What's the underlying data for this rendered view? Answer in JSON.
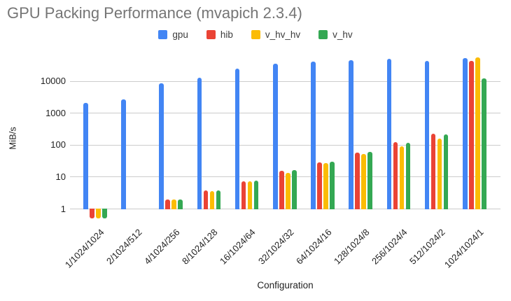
{
  "chart_data": {
    "type": "bar",
    "title": "GPU Packing Performance (mvapich 2.3.4)",
    "xlabel": "Configuration",
    "ylabel": "MiB/s",
    "y_scale": "log",
    "y_ticks": [
      1,
      10,
      100,
      1000,
      10000
    ],
    "ylim": [
      0.5,
      60000
    ],
    "grid": true,
    "legend_position": "top",
    "title_color": "#757575",
    "gridline_color": "#cccccc",
    "categories": [
      "1/1024/1024",
      "2/1024/512",
      "4/1024/256",
      "8/1024/128",
      "16/1024/64",
      "32/1024/32",
      "64/1024/16",
      "128/1024/8",
      "256/1024/4",
      "512/1024/2",
      "1024/1024/1"
    ],
    "series": [
      {
        "name": "gpu",
        "color": "#4285F4",
        "values": [
          2000,
          2600,
          8300,
          12500,
          24000,
          34000,
          40000,
          44000,
          49000,
          42000,
          52000
        ]
      },
      {
        "name": "hib",
        "color": "#EA4335",
        "values": [
          0.5,
          1,
          1.9,
          3.7,
          7.3,
          15,
          28,
          57,
          120,
          225,
          42000
        ]
      },
      {
        "name": "v_hv_hv",
        "color": "#FBBC04",
        "values": [
          0.5,
          1,
          1.9,
          3.6,
          7.2,
          13,
          26,
          51,
          90,
          155,
          54000
        ]
      },
      {
        "name": "v_hv",
        "color": "#34A853",
        "values": [
          0.5,
          1,
          1.9,
          3.7,
          7.4,
          16,
          30,
          60,
          115,
          210,
          12000
        ]
      }
    ]
  }
}
